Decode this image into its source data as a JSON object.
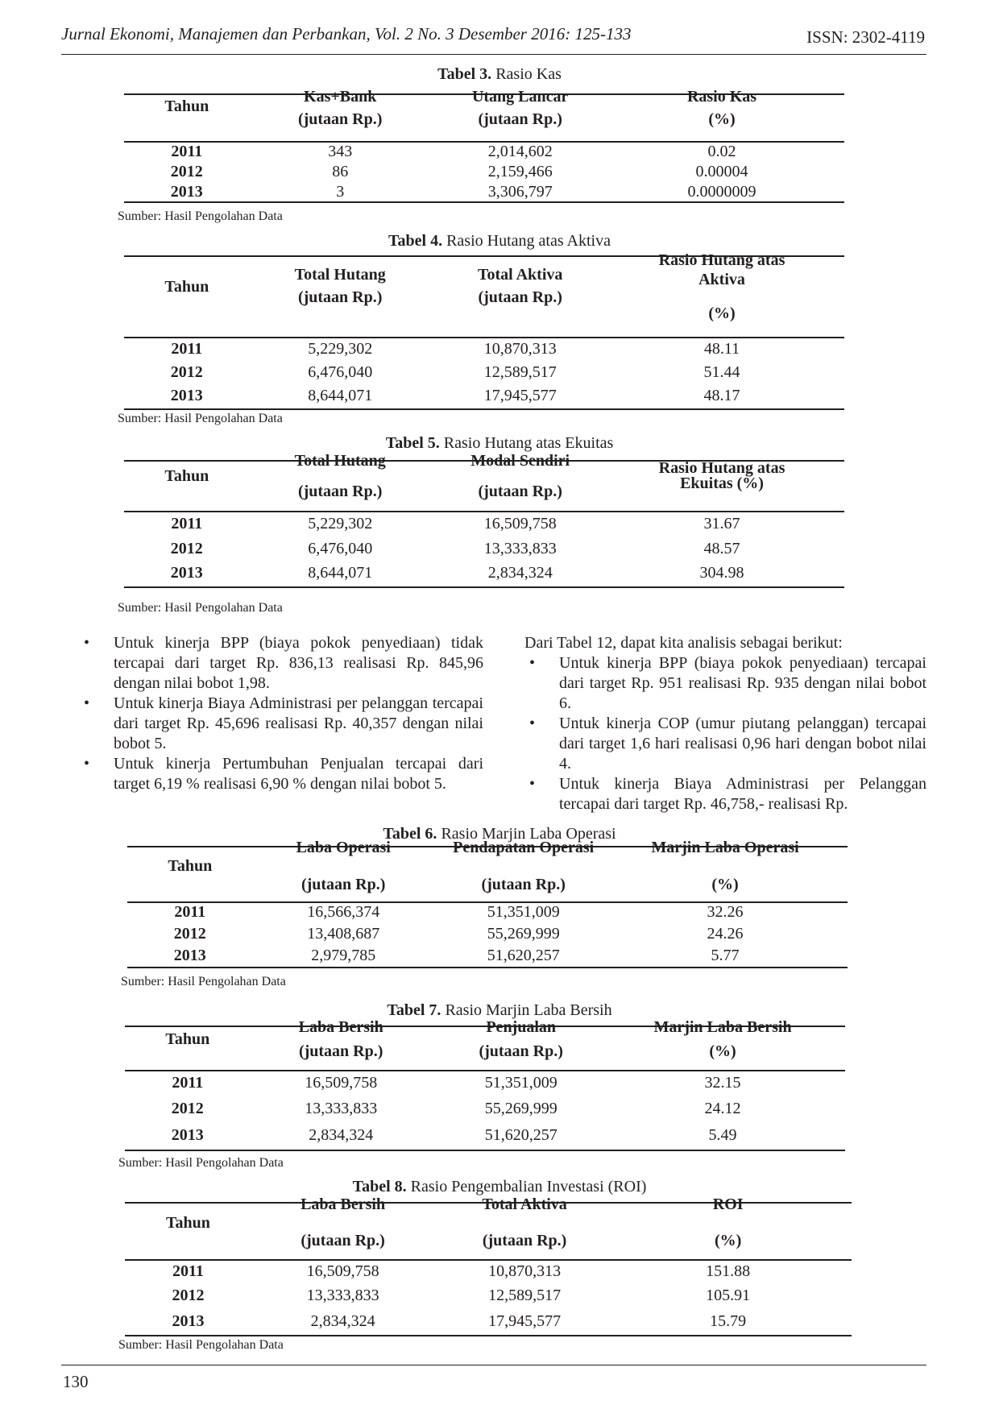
{
  "header": {
    "journal": "Jurnal Ekonomi, Manajemen dan Perbankan, Vol. 2 No. 3 Desember 2016: 125-133",
    "issn": "ISSN: 2302-4119"
  },
  "tables": [
    {
      "label": "Tabel 3.",
      "title": "Rasio Kas",
      "headers": [
        [
          "Tahun"
        ],
        [
          "Kas+Bank",
          "(jutaan Rp.)"
        ],
        [
          "Utang Lancar",
          "(jutaan Rp.)"
        ],
        [
          "Rasio Kas",
          "(%)"
        ]
      ],
      "rows": [
        [
          "2011",
          "343",
          "2,014,602",
          "0.02"
        ],
        [
          "2012",
          "86",
          "2,159,466",
          "0.00004"
        ],
        [
          "2013",
          "3",
          "3,306,797",
          "0.0000009"
        ]
      ],
      "source": "Sumber: Hasil Pengolahan Data"
    },
    {
      "label": "Tabel 4.",
      "title": "Rasio Hutang atas Aktiva",
      "headers": [
        [
          "Tahun"
        ],
        [
          "Total Hutang",
          "(jutaan Rp.)"
        ],
        [
          "Total Aktiva",
          "(jutaan Rp.)"
        ],
        [
          "Rasio Hutang atas",
          "Aktiva",
          "(%)"
        ]
      ],
      "rows": [
        [
          "2011",
          "5,229,302",
          "10,870,313",
          "48.11"
        ],
        [
          "2012",
          "6,476,040",
          "12,589,517",
          "51.44"
        ],
        [
          "2013",
          "8,644,071",
          "17,945,577",
          "48.17"
        ]
      ],
      "source": "Sumber: Hasil Pengolahan Data"
    },
    {
      "label": "Tabel 5.",
      "title": "Rasio Hutang atas Ekuitas",
      "headers": [
        [
          "Tahun"
        ],
        [
          "Total Hutang",
          "(jutaan Rp.)"
        ],
        [
          "Modal Sendiri",
          "(jutaan Rp.)"
        ],
        [
          "Rasio Hutang atas",
          "Ekuitas (%)"
        ]
      ],
      "rows": [
        [
          "2011",
          "5,229,302",
          "16,509,758",
          "31.67"
        ],
        [
          "2012",
          "6,476,040",
          "13,333,833",
          "48.57"
        ],
        [
          "2013",
          "8,644,071",
          "2,834,324",
          "304.98"
        ]
      ],
      "source": "Sumber: Hasil Pengolahan Data"
    },
    {
      "label": "Tabel 6.",
      "title": "Rasio Marjin Laba Operasi",
      "headers": [
        [
          "Tahun"
        ],
        [
          "Laba Operasi",
          "(jutaan Rp.)"
        ],
        [
          "Pendapatan Operasi",
          "(jutaan Rp.)"
        ],
        [
          "Marjin Laba Operasi",
          "(%)"
        ]
      ],
      "rows": [
        [
          "2011",
          "16,566,374",
          "51,351,009",
          "32.26"
        ],
        [
          "2012",
          "13,408,687",
          "55,269,999",
          "24.26"
        ],
        [
          "2013",
          "2,979,785",
          "51,620,257",
          "5.77"
        ]
      ],
      "source": "Sumber: Hasil Pengolahan Data"
    },
    {
      "label": "Tabel 7.",
      "title": "Rasio Marjin Laba Bersih",
      "headers": [
        [
          "Tahun"
        ],
        [
          "Laba Bersih",
          "(jutaan Rp.)"
        ],
        [
          "Penjualan",
          "(jutaan Rp.)"
        ],
        [
          "Marjin Laba Bersih",
          "(%)"
        ]
      ],
      "rows": [
        [
          "2011",
          "16,509,758",
          "51,351,009",
          "32.15"
        ],
        [
          "2012",
          "13,333,833",
          "55,269,999",
          "24.12"
        ],
        [
          "2013",
          "2,834,324",
          "51,620,257",
          "5.49"
        ]
      ],
      "source": "Sumber: Hasil Pengolahan Data"
    },
    {
      "label": "Tabel 8.",
      "title": "Rasio Pengembalian Investasi (ROI)",
      "headers": [
        [
          "Tahun"
        ],
        [
          "Laba Bersih",
          "(jutaan Rp.)"
        ],
        [
          "Total Aktiva",
          "(jutaan Rp.)"
        ],
        [
          "ROI",
          "(%)"
        ]
      ],
      "rows": [
        [
          "2011",
          "16,509,758",
          "10,870,313",
          "151.88"
        ],
        [
          "2012",
          "13,333,833",
          "12,589,517",
          "105.91"
        ],
        [
          "2013",
          "2,834,324",
          "17,945,577",
          "15.79"
        ]
      ],
      "source": "Sumber: Hasil Pengolahan Data"
    }
  ],
  "left_column": {
    "bullets": [
      "Untuk kinerja BPP (biaya pokok penyediaan) tidak tercapai dari target Rp. 836,13 realisasi Rp. 845,96 dengan nilai bobot 1,98.",
      "Untuk kinerja Biaya Administrasi per pelanggan tercapai dari target Rp. 45,696 realisasi Rp. 40,357 dengan nilai bobot 5.",
      "Untuk kinerja Pertumbuhan Penjualan tercapai dari target 6,19 % realisasi 6,90 % dengan nilai bobot 5."
    ]
  },
  "right_column": {
    "intro": "Dari Tabel 12, dapat kita analisis sebagai berikut:",
    "bullets": [
      "Untuk kinerja BPP (biaya pokok penyediaan) tercapai dari target Rp. 951 realisasi Rp. 935 dengan nilai bobot 6.",
      "Untuk kinerja COP (umur piutang pelanggan) tercapai dari target 1,6 hari realisasi 0,96 hari dengan bobot nilai 4.",
      "Untuk kinerja Biaya Administrasi per Pelanggan tercapai dari target Rp. 46,758,- realisasi Rp."
    ]
  },
  "bullet_char": "•",
  "page_number": "130"
}
